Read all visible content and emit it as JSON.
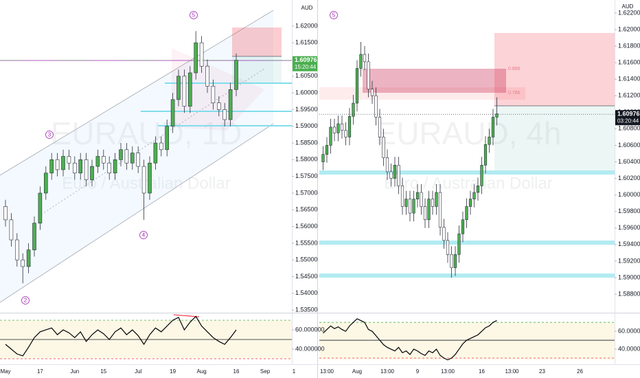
{
  "chart_data": [
    {
      "type": "candlestick",
      "title": "EURAUD, 1D",
      "subtitle": "Euro / Australian Dollar",
      "currency": "AUD",
      "categories": [
        "May",
        null,
        null,
        null,
        null,
        null,
        "17",
        null,
        null,
        null,
        null,
        null,
        "Jun",
        null,
        null,
        null,
        null,
        "15",
        null,
        null,
        null,
        null,
        null,
        "Jul",
        null,
        null,
        null,
        null,
        null,
        "19",
        null,
        null,
        null,
        null,
        "Aug",
        null,
        null,
        null,
        null,
        null,
        "16",
        null,
        null,
        null,
        null,
        "Sep",
        null,
        null,
        null,
        null,
        "1"
      ],
      "open": [
        1.566,
        1.562,
        1.556,
        1.55,
        1.548,
        1.553,
        1.561,
        1.57,
        1.576,
        1.58,
        1.577,
        1.581,
        1.579,
        1.576,
        1.58,
        1.574,
        1.578,
        1.581,
        1.579,
        1.576,
        1.58,
        1.583,
        1.579,
        1.582,
        1.578,
        1.57,
        1.579,
        1.585,
        1.583,
        1.59,
        1.598,
        1.605,
        1.596,
        1.606,
        1.615,
        1.608,
        1.602,
        1.597,
        1.595,
        1.592,
        1.601,
        null,
        null,
        null,
        null,
        null,
        null,
        null,
        null,
        null,
        null
      ],
      "high": [
        1.568,
        1.564,
        1.558,
        1.552,
        1.555,
        1.563,
        1.572,
        1.578,
        1.582,
        1.582,
        1.583,
        1.583,
        1.581,
        1.582,
        1.582,
        1.58,
        1.583,
        1.583,
        1.581,
        1.582,
        1.585,
        1.585,
        1.584,
        1.584,
        1.58,
        1.581,
        1.587,
        1.587,
        1.592,
        1.6,
        1.607,
        1.607,
        1.608,
        1.6185,
        1.617,
        1.61,
        1.604,
        1.599,
        1.597,
        1.603,
        1.6118,
        null,
        null,
        null,
        null,
        null,
        null,
        null,
        null,
        null,
        null
      ],
      "low": [
        1.56,
        1.554,
        1.548,
        1.543,
        1.546,
        1.551,
        1.559,
        1.568,
        1.574,
        1.575,
        1.575,
        1.577,
        1.574,
        1.574,
        1.572,
        1.572,
        1.576,
        1.577,
        1.574,
        1.574,
        1.578,
        1.577,
        1.577,
        1.576,
        1.562,
        1.568,
        1.577,
        1.581,
        1.581,
        1.588,
        1.596,
        1.594,
        1.594,
        1.604,
        1.606,
        1.6,
        1.595,
        1.593,
        1.59,
        1.59,
        1.599,
        null,
        null,
        null,
        null,
        null,
        null,
        null,
        null,
        null,
        null
      ],
      "close": [
        1.562,
        1.556,
        1.55,
        1.548,
        1.553,
        1.561,
        1.57,
        1.576,
        1.58,
        1.577,
        1.581,
        1.579,
        1.576,
        1.58,
        1.574,
        1.578,
        1.581,
        1.579,
        1.576,
        1.58,
        1.583,
        1.579,
        1.582,
        1.578,
        1.57,
        1.579,
        1.585,
        1.583,
        1.59,
        1.598,
        1.605,
        1.596,
        1.606,
        1.615,
        1.608,
        1.602,
        1.597,
        1.595,
        1.592,
        1.601,
        1.6098,
        null,
        null,
        null,
        null,
        null,
        null,
        null,
        null,
        null,
        null
      ],
      "up_color": "#4caf50",
      "down_color": "#ffffff",
      "ylim": [
        1.5342,
        1.6278
      ],
      "yticks": [
        {
          "value": 1.62,
          "label": "1.62000"
        },
        {
          "value": 1.615,
          "label": "1.61500"
        },
        {
          "value": 1.61,
          "label": "1.61000"
        },
        {
          "value": 1.605,
          "label": "1.60500"
        },
        {
          "value": 1.6,
          "label": "1.60000"
        },
        {
          "value": 1.595,
          "label": "1.59500"
        },
        {
          "value": 1.59,
          "label": "1.59000"
        },
        {
          "value": 1.585,
          "label": "1.58500"
        },
        {
          "value": 1.58,
          "label": "1.58000"
        },
        {
          "value": 1.575,
          "label": "1.57500"
        },
        {
          "value": 1.57,
          "label": "1.57000"
        },
        {
          "value": 1.565,
          "label": "1.56500"
        },
        {
          "value": 1.56,
          "label": "1.56000"
        },
        {
          "value": 1.555,
          "label": "1.55500"
        },
        {
          "value": 1.55,
          "label": "1.55000"
        },
        {
          "value": 1.545,
          "label": "1.54500"
        },
        {
          "value": 1.54,
          "label": "1.54000"
        },
        {
          "value": 1.535,
          "label": "1.53500"
        }
      ],
      "last_price": 1.60976,
      "countdown": "15:20:44",
      "last_price_color": "#4caf50",
      "annotations": [
        "5",
        "3",
        "2",
        "4"
      ],
      "rsi": {
        "color": "#000000",
        "values": [
          45,
          40,
          35,
          33,
          42,
          52,
          58,
          60,
          62,
          55,
          60,
          57,
          52,
          58,
          48,
          55,
          60,
          56,
          50,
          58,
          62,
          55,
          60,
          54,
          45,
          55,
          62,
          58,
          64,
          70,
          73,
          60,
          68,
          74,
          64,
          58,
          52,
          48,
          45,
          52,
          60,
          null,
          null,
          null,
          null,
          null,
          null,
          null,
          null,
          null,
          null
        ],
        "ylim": [
          24.3,
          75.7
        ],
        "yticks": [
          {
            "value": 60,
            "label": "60.000000"
          },
          {
            "value": 40,
            "label": "40.000000"
          }
        ],
        "levels": [
          70,
          50,
          30
        ],
        "level_colors": [
          "#4caf50",
          "#131722",
          "#f23645"
        ]
      }
    },
    {
      "type": "candlestick",
      "title": "EURAUD, 4h",
      "subtitle": "Euro / Australian Dollar",
      "currency": "AUD",
      "categories": [
        null,
        "13:00",
        null,
        null,
        null,
        null,
        null,
        null,
        null,
        "Aug",
        null,
        null,
        null,
        null,
        null,
        null,
        null,
        "13:00",
        null,
        null,
        null,
        null,
        null,
        null,
        null,
        "9",
        null,
        null,
        null,
        null,
        null,
        null,
        null,
        "13:00",
        null,
        null,
        null,
        null,
        null,
        null,
        null,
        null,
        "16",
        null,
        null,
        null,
        null,
        null,
        null,
        null,
        "13:00",
        null,
        null,
        null,
        null,
        null,
        null,
        null,
        "23",
        null,
        null,
        null,
        null,
        null,
        null,
        null,
        null,
        null,
        "26",
        null
      ],
      "open": [
        1.604,
        1.6049,
        1.606,
        1.6082,
        1.6075,
        1.6086,
        1.6078,
        1.607,
        1.6095,
        1.6111,
        1.6153,
        1.617,
        1.6161,
        1.6128,
        1.612,
        1.6094,
        1.607,
        1.6045,
        1.6028,
        1.602,
        1.6036,
        1.6011,
        1.5986,
        1.5995,
        1.5978,
        1.5995,
        1.6003,
        1.5986,
        1.597,
        1.5995,
        1.5986,
        1.6003,
        1.5961,
        1.5945,
        1.5928,
        1.5912,
        1.5928,
        1.5953,
        1.597,
        1.5986,
        1.5995,
        1.6003,
        1.6011,
        1.6036,
        1.6061,
        1.607,
        1.6094,
        null,
        null,
        null,
        null,
        null,
        null,
        null,
        null,
        null,
        null,
        null,
        null,
        null,
        null,
        null,
        null,
        null,
        null,
        null,
        null,
        null,
        null,
        null
      ],
      "high": [
        1.6059,
        1.607,
        1.6092,
        1.6092,
        1.6096,
        1.6096,
        1.6088,
        1.6105,
        1.6121,
        1.6163,
        1.6185,
        1.618,
        1.6171,
        1.6138,
        1.613,
        1.6104,
        1.608,
        1.6055,
        1.6038,
        1.6046,
        1.6046,
        1.6021,
        1.6005,
        1.6005,
        1.6005,
        1.6013,
        1.6013,
        1.5996,
        1.6005,
        1.6005,
        1.6013,
        1.6013,
        1.5971,
        1.5955,
        1.5938,
        1.5938,
        1.5963,
        1.598,
        1.5996,
        1.6005,
        1.6013,
        1.6021,
        1.6046,
        1.6071,
        1.608,
        1.6104,
        1.6118,
        null,
        null,
        null,
        null,
        null,
        null,
        null,
        null,
        null,
        null,
        null,
        null,
        null,
        null,
        null,
        null,
        null,
        null,
        null,
        null,
        null,
        null,
        null
      ],
      "low": [
        1.603,
        1.6039,
        1.605,
        1.6065,
        1.6065,
        1.6068,
        1.606,
        1.606,
        1.6085,
        1.6101,
        1.6143,
        1.6151,
        1.6118,
        1.611,
        1.6084,
        1.606,
        1.6035,
        1.6018,
        1.601,
        1.601,
        1.6001,
        1.5976,
        1.5976,
        1.5968,
        1.5968,
        1.5985,
        1.5976,
        1.596,
        1.596,
        1.5976,
        1.5976,
        1.5951,
        1.5935,
        1.5918,
        1.59,
        1.5902,
        1.5918,
        1.5943,
        1.596,
        1.5976,
        1.5985,
        1.5993,
        1.6001,
        1.6026,
        1.6051,
        1.606,
        1.6084,
        null,
        null,
        null,
        null,
        null,
        null,
        null,
        null,
        null,
        null,
        null,
        null,
        null,
        null,
        null,
        null,
        null,
        null,
        null,
        null,
        null,
        null,
        null
      ],
      "close": [
        1.6049,
        1.606,
        1.6082,
        1.6075,
        1.6086,
        1.6078,
        1.607,
        1.6095,
        1.6111,
        1.6153,
        1.617,
        1.6161,
        1.6128,
        1.612,
        1.6094,
        1.607,
        1.6045,
        1.6028,
        1.602,
        1.6036,
        1.6011,
        1.5986,
        1.5995,
        1.5978,
        1.5995,
        1.6003,
        1.5986,
        1.597,
        1.5995,
        1.5986,
        1.6003,
        1.5961,
        1.5945,
        1.5928,
        1.5912,
        1.5928,
        1.5953,
        1.597,
        1.5986,
        1.5995,
        1.6003,
        1.6011,
        1.6036,
        1.6061,
        1.607,
        1.6094,
        1.6098,
        null,
        null,
        null,
        null,
        null,
        null,
        null,
        null,
        null,
        null,
        null,
        null,
        null,
        null,
        null,
        null,
        null,
        null,
        null,
        null,
        null,
        null,
        null
      ],
      "up_color": "#4caf50",
      "down_color": "#ffffff",
      "ylim": [
        1.58576,
        1.62357
      ],
      "yticks": [
        {
          "value": 1.622,
          "label": "1.62200"
        },
        {
          "value": 1.62,
          "label": "1.62000"
        },
        {
          "value": 1.618,
          "label": "1.61800"
        },
        {
          "value": 1.616,
          "label": "1.61600"
        },
        {
          "value": 1.614,
          "label": "1.61400"
        },
        {
          "value": 1.612,
          "label": "1.61200"
        },
        {
          "value": 1.61,
          "label": "1.61000"
        },
        {
          "value": 1.608,
          "label": "1.60800"
        },
        {
          "value": 1.606,
          "label": "1.60600"
        },
        {
          "value": 1.604,
          "label": "1.60400"
        },
        {
          "value": 1.602,
          "label": "1.60200"
        },
        {
          "value": 1.6,
          "label": "1.60000"
        },
        {
          "value": 1.598,
          "label": "1.59800"
        },
        {
          "value": 1.596,
          "label": "1.59600"
        },
        {
          "value": 1.594,
          "label": "1.59400"
        },
        {
          "value": 1.592,
          "label": "1.59200"
        },
        {
          "value": 1.59,
          "label": "1.59000"
        },
        {
          "value": 1.588,
          "label": "1.58800"
        }
      ],
      "last_price": 1.60976,
      "countdown": "03:20:44",
      "last_price_color": "#131722",
      "annotations": [
        "5"
      ],
      "fib_labels": [
        "0.886",
        "0.786"
      ],
      "rsi": {
        "color": "#000000",
        "values": [
          58,
          62,
          66,
          63,
          65,
          62,
          60,
          66,
          70,
          74,
          72,
          70,
          62,
          60,
          55,
          50,
          45,
          42,
          40,
          38,
          42,
          36,
          38,
          34,
          40,
          38,
          35,
          33,
          38,
          36,
          40,
          33,
          30,
          28,
          30,
          34,
          40,
          46,
          50,
          52,
          54,
          56,
          60,
          64,
          66,
          70,
          72,
          null,
          null,
          null,
          null,
          null,
          null,
          null,
          null,
          null,
          null,
          null,
          null,
          null,
          null,
          null,
          null,
          null,
          null,
          null,
          null,
          null,
          null,
          null
        ],
        "ylim": [
          23.1,
          78.5
        ],
        "yticks": [
          {
            "value": 60,
            "label": "60.000000"
          },
          {
            "value": 40,
            "label": "40.000000"
          }
        ],
        "levels": [
          70,
          50,
          30
        ],
        "level_colors": [
          "#4caf50",
          "#131722",
          "#f23645"
        ]
      }
    }
  ]
}
